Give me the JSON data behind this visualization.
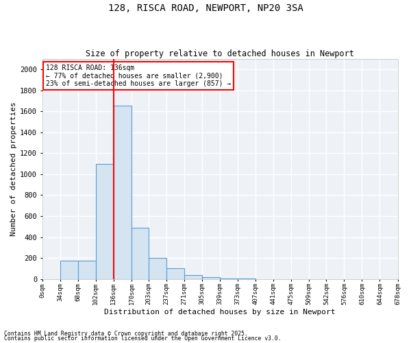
{
  "title": "128, RISCA ROAD, NEWPORT, NP20 3SA",
  "subtitle": "Size of property relative to detached houses in Newport",
  "xlabel": "Distribution of detached houses by size in Newport",
  "ylabel": "Number of detached properties",
  "bar_edges": [
    0,
    34,
    68,
    102,
    136,
    170,
    203,
    237,
    271,
    305,
    339,
    373,
    407,
    441,
    475,
    509,
    542,
    576,
    610,
    644,
    678
  ],
  "bar_heights": [
    0,
    175,
    175,
    1100,
    1650,
    490,
    200,
    100,
    40,
    20,
    5,
    5,
    0,
    0,
    0,
    0,
    0,
    0,
    0,
    0
  ],
  "bar_color": "#d4e4f0",
  "bar_edge_color": "#5b9bd5",
  "red_line_x": 136,
  "ylim": [
    0,
    2100
  ],
  "annotation_text": "128 RISCA ROAD: 136sqm\n← 77% of detached houses are smaller (2,900)\n23% of semi-detached houses are larger (857) →",
  "footer1": "Contains HM Land Registry data © Crown copyright and database right 2025.",
  "footer2": "Contains public sector information licensed under the Open Government Licence v3.0.",
  "background_color": "#eef2f7",
  "grid_color": "#ffffff",
  "tick_labels": [
    "0sqm",
    "34sqm",
    "68sqm",
    "102sqm",
    "136sqm",
    "170sqm",
    "203sqm",
    "237sqm",
    "271sqm",
    "305sqm",
    "339sqm",
    "373sqm",
    "407sqm",
    "441sqm",
    "475sqm",
    "509sqm",
    "542sqm",
    "576sqm",
    "610sqm",
    "644sqm",
    "678sqm"
  ]
}
